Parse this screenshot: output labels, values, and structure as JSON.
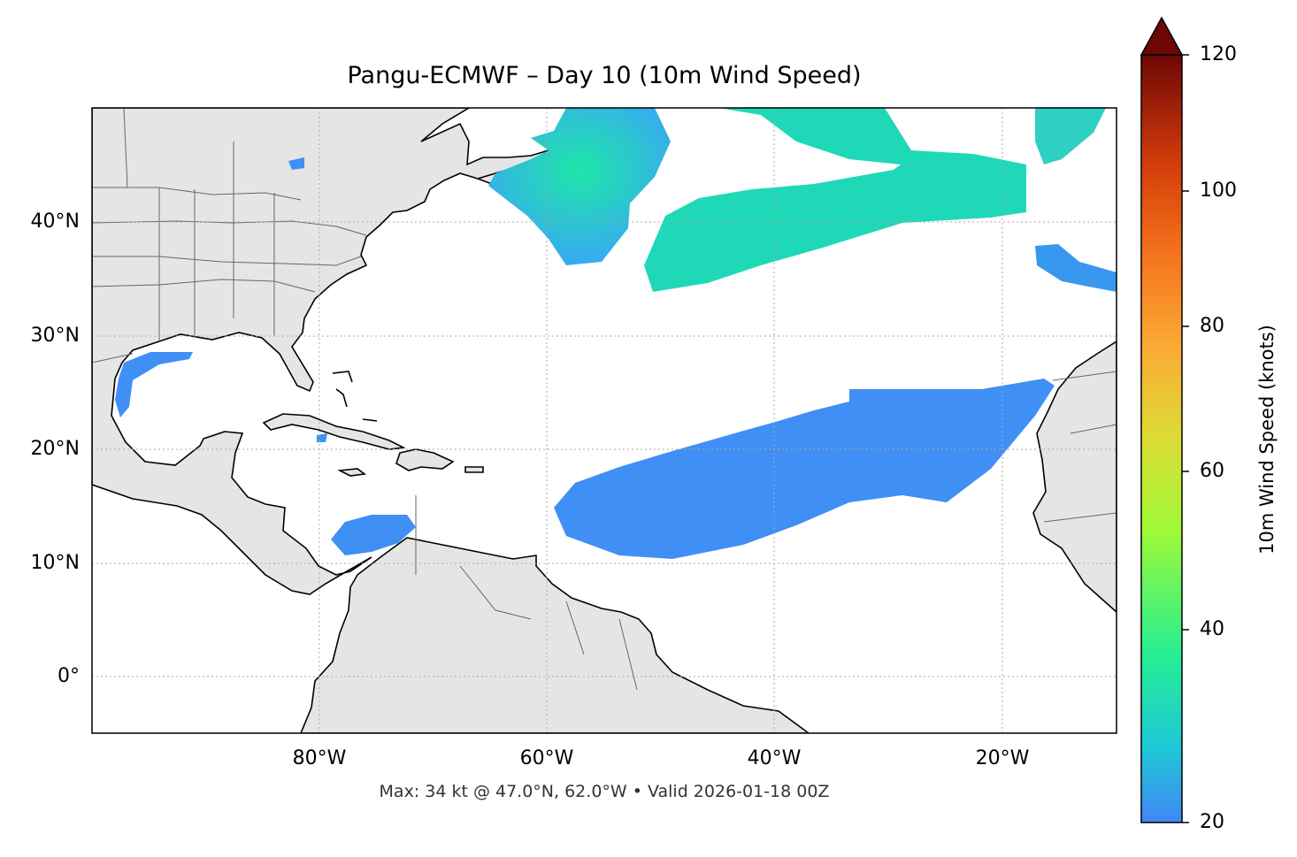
{
  "title": "Pangu-ECMWF – Day 10 (10m Wind Speed)",
  "subtitle": "Max: 34 kt @ 47.0°N, 62.0°W • Valid 2026-01-18 00Z",
  "axes": {
    "lon_range": [
      -100,
      -10
    ],
    "lat_range": [
      -5,
      50
    ],
    "lat_ticks": [
      {
        "value": 40,
        "label": "40°N"
      },
      {
        "value": 30,
        "label": "30°N"
      },
      {
        "value": 20,
        "label": "20°N"
      },
      {
        "value": 10,
        "label": "10°N"
      },
      {
        "value": 0,
        "label": "0°"
      }
    ],
    "lon_ticks": [
      {
        "value": -80,
        "label": "80°W"
      },
      {
        "value": -60,
        "label": "60°W"
      },
      {
        "value": -40,
        "label": "40°W"
      },
      {
        "value": -20,
        "label": "20°W"
      }
    ],
    "grid": "dotted"
  },
  "colorbar": {
    "label": "10m Wind Speed (knots)",
    "ticks": [
      "120",
      "100",
      "80",
      "60",
      "40",
      "20"
    ],
    "range": [
      20,
      120
    ],
    "extend": "max",
    "colors": [
      "#4087f5",
      "#1ec9d4",
      "#27ee93",
      "#9ef936",
      "#dcdc35",
      "#fbaa35",
      "#f4731c",
      "#d23c0a",
      "#9f1603",
      "#6e0606"
    ]
  },
  "colors": {
    "land": "#e5e5e5",
    "ocean": "#ffffff",
    "wind_low": "#4087f5",
    "wind_mid": "#1ee6a8"
  },
  "max_wind": {
    "value_kt": 34,
    "lat": 47.0,
    "lon": -62.0
  }
}
